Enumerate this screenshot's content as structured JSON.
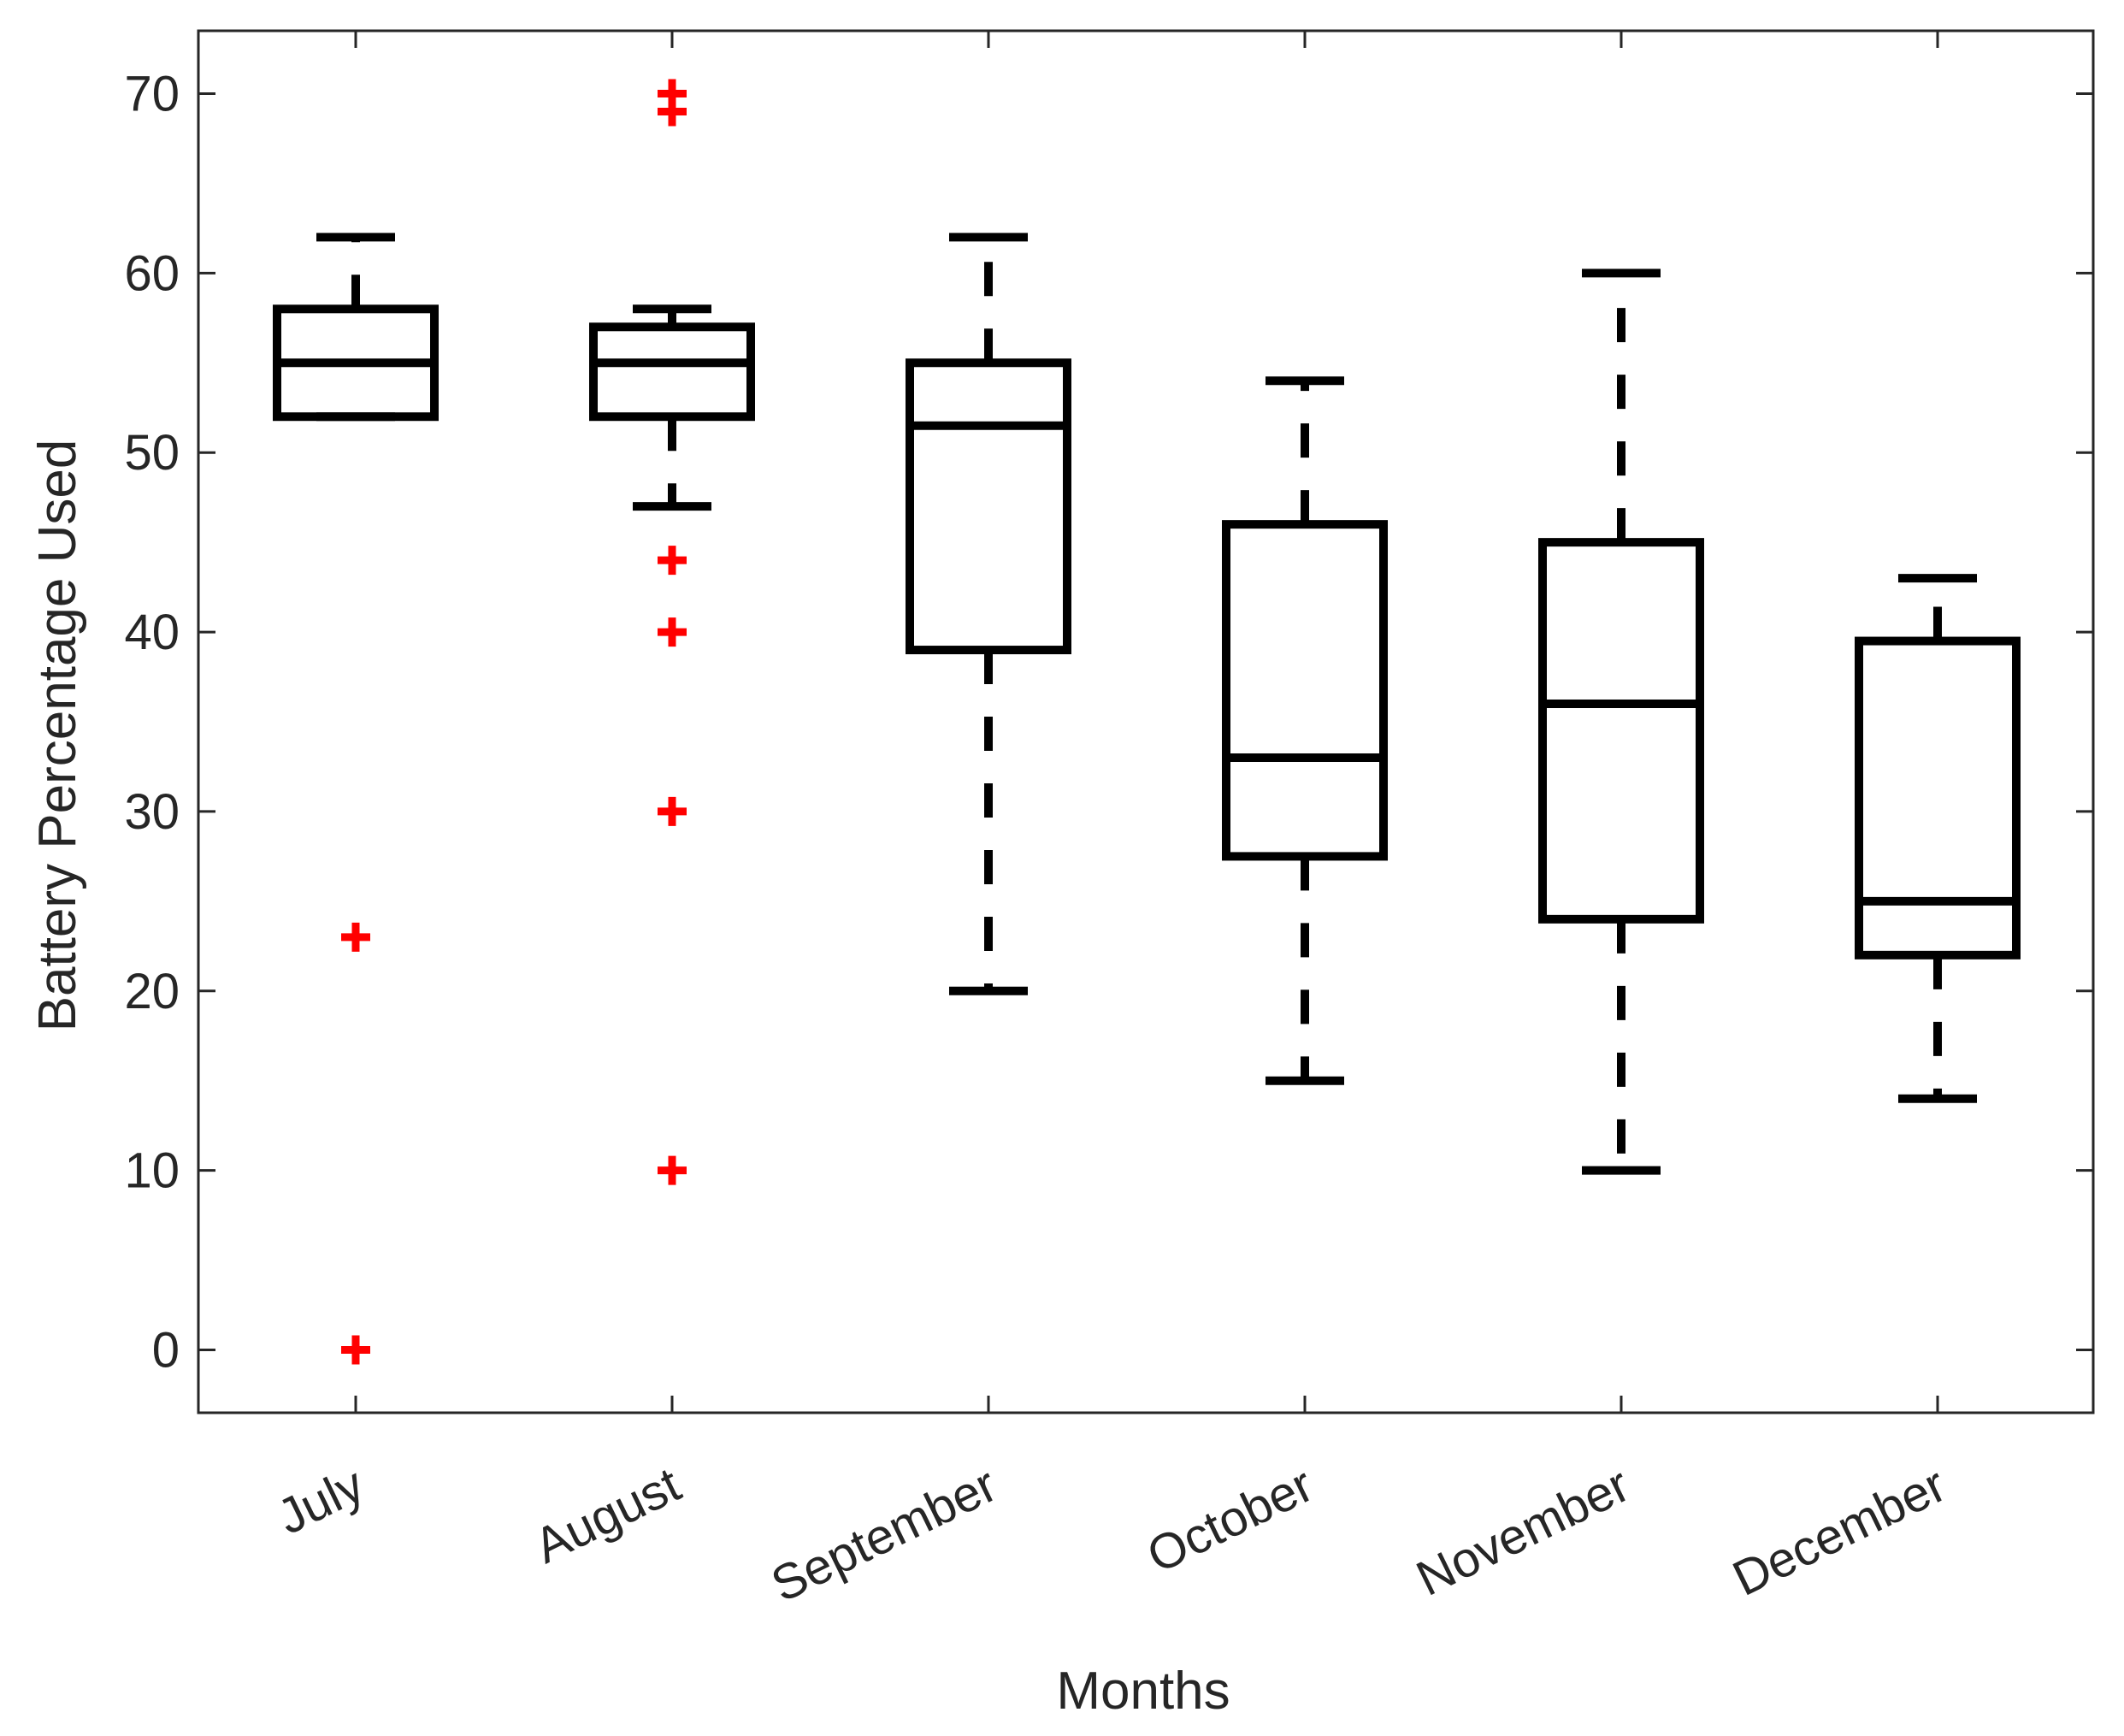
{
  "chart_data": {
    "type": "box",
    "xlabel": "Months",
    "ylabel": "Battery Percentage Used",
    "ylim": [
      -3.5,
      73.5
    ],
    "yticks": [
      0,
      10,
      20,
      30,
      40,
      50,
      60,
      70
    ],
    "grid": false,
    "categories": [
      "July",
      "August",
      "September",
      "October",
      "November",
      "December"
    ],
    "boxes": [
      {
        "month": "July",
        "whisker_low": 52,
        "q1": 52,
        "median": 55,
        "q3": 58,
        "whisker_high": 62,
        "outliers": [
          23,
          0
        ]
      },
      {
        "month": "August",
        "whisker_low": 47,
        "q1": 52,
        "median": 55,
        "q3": 57,
        "whisker_high": 58,
        "outliers": [
          70,
          69,
          44,
          40,
          30,
          10
        ]
      },
      {
        "month": "September",
        "whisker_low": 20,
        "q1": 39,
        "median": 51.5,
        "q3": 55,
        "whisker_high": 62,
        "outliers": []
      },
      {
        "month": "October",
        "whisker_low": 15,
        "q1": 27.5,
        "median": 33,
        "q3": 46,
        "whisker_high": 54,
        "outliers": []
      },
      {
        "month": "November",
        "whisker_low": 10,
        "q1": 24,
        "median": 36,
        "q3": 45,
        "whisker_high": 60,
        "outliers": []
      },
      {
        "month": "December",
        "whisker_low": 14,
        "q1": 22,
        "median": 25,
        "q3": 39.5,
        "whisker_high": 43,
        "outliers": []
      }
    ],
    "colors": {
      "box": "#000000",
      "outlier": "#ff0000",
      "axis": "#262626"
    }
  }
}
